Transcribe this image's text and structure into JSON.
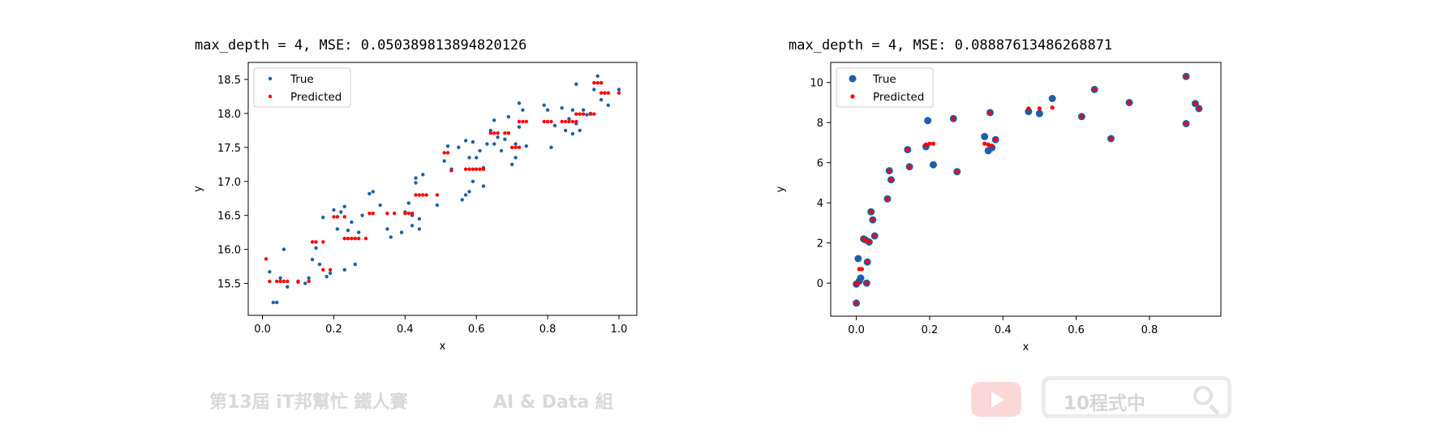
{
  "chart_data": [
    {
      "type": "scatter",
      "title": "max_depth = 4,  MSE:  0.050389813894820126",
      "xlabel": "x",
      "ylabel": "y",
      "xlim": [
        -0.04,
        1.05
      ],
      "ylim": [
        15.03,
        18.75
      ],
      "xticks": [
        "0.0",
        "0.2",
        "0.4",
        "0.6",
        "0.8",
        "1.0"
      ],
      "yticks": [
        "15.5",
        "16.0",
        "16.5",
        "17.0",
        "17.5",
        "18.0",
        "18.5"
      ],
      "grid": false,
      "legend_position": "upper-left",
      "series": [
        {
          "name": "True",
          "color": "#1f5fa8",
          "marker_size": 2.2,
          "points": [
            [
              0.02,
              15.67
            ],
            [
              0.03,
              15.22
            ],
            [
              0.04,
              15.22
            ],
            [
              0.05,
              15.58
            ],
            [
              0.06,
              16.0
            ],
            [
              0.07,
              15.45
            ],
            [
              0.1,
              15.52
            ],
            [
              0.12,
              15.5
            ],
            [
              0.13,
              15.58
            ],
            [
              0.14,
              15.85
            ],
            [
              0.15,
              16.02
            ],
            [
              0.16,
              15.78
            ],
            [
              0.17,
              16.47
            ],
            [
              0.18,
              15.6
            ],
            [
              0.19,
              15.65
            ],
            [
              0.2,
              16.58
            ],
            [
              0.21,
              16.3
            ],
            [
              0.22,
              16.55
            ],
            [
              0.23,
              16.63
            ],
            [
              0.23,
              15.7
            ],
            [
              0.24,
              16.28
            ],
            [
              0.25,
              16.4
            ],
            [
              0.26,
              15.78
            ],
            [
              0.27,
              16.25
            ],
            [
              0.28,
              16.5
            ],
            [
              0.3,
              16.82
            ],
            [
              0.31,
              16.85
            ],
            [
              0.33,
              16.65
            ],
            [
              0.35,
              16.3
            ],
            [
              0.36,
              16.18
            ],
            [
              0.39,
              16.25
            ],
            [
              0.4,
              16.55
            ],
            [
              0.41,
              16.68
            ],
            [
              0.42,
              16.5
            ],
            [
              0.42,
              16.35
            ],
            [
              0.43,
              16.98
            ],
            [
              0.43,
              17.05
            ],
            [
              0.44,
              16.3
            ],
            [
              0.44,
              16.45
            ],
            [
              0.45,
              17.1
            ],
            [
              0.49,
              16.65
            ],
            [
              0.51,
              17.3
            ],
            [
              0.52,
              17.52
            ],
            [
              0.53,
              17.18
            ],
            [
              0.55,
              17.5
            ],
            [
              0.56,
              16.73
            ],
            [
              0.57,
              16.8
            ],
            [
              0.57,
              17.6
            ],
            [
              0.58,
              16.85
            ],
            [
              0.58,
              17.35
            ],
            [
              0.59,
              17.58
            ],
            [
              0.59,
              17.0
            ],
            [
              0.6,
              17.35
            ],
            [
              0.61,
              17.45
            ],
            [
              0.62,
              16.93
            ],
            [
              0.62,
              17.2
            ],
            [
              0.63,
              17.55
            ],
            [
              0.64,
              17.75
            ],
            [
              0.65,
              17.9
            ],
            [
              0.65,
              17.55
            ],
            [
              0.66,
              17.65
            ],
            [
              0.67,
              17.45
            ],
            [
              0.68,
              17.62
            ],
            [
              0.69,
              17.95
            ],
            [
              0.7,
              17.25
            ],
            [
              0.71,
              17.35
            ],
            [
              0.71,
              17.55
            ],
            [
              0.72,
              18.15
            ],
            [
              0.72,
              17.8
            ],
            [
              0.73,
              18.05
            ],
            [
              0.74,
              17.52
            ],
            [
              0.79,
              18.12
            ],
            [
              0.8,
              18.05
            ],
            [
              0.81,
              17.5
            ],
            [
              0.82,
              17.82
            ],
            [
              0.84,
              18.08
            ],
            [
              0.85,
              17.75
            ],
            [
              0.86,
              17.92
            ],
            [
              0.87,
              17.7
            ],
            [
              0.87,
              18.05
            ],
            [
              0.88,
              18.43
            ],
            [
              0.88,
              17.85
            ],
            [
              0.89,
              17.75
            ],
            [
              0.9,
              18.05
            ],
            [
              0.91,
              17.98
            ],
            [
              0.92,
              18.0
            ],
            [
              0.93,
              18.35
            ],
            [
              0.94,
              18.55
            ],
            [
              0.95,
              18.2
            ],
            [
              0.95,
              18.45
            ],
            [
              0.96,
              18.3
            ],
            [
              0.97,
              18.12
            ],
            [
              1.0,
              18.35
            ]
          ]
        },
        {
          "name": "Predicted",
          "color": "#ff0000",
          "marker_size": 2.2,
          "points": [
            [
              0.01,
              15.86
            ],
            [
              0.02,
              15.53
            ],
            [
              0.04,
              15.53
            ],
            [
              0.05,
              15.53
            ],
            [
              0.06,
              15.53
            ],
            [
              0.07,
              15.53
            ],
            [
              0.1,
              15.53
            ],
            [
              0.13,
              15.53
            ],
            [
              0.14,
              16.11
            ],
            [
              0.15,
              16.11
            ],
            [
              0.17,
              16.11
            ],
            [
              0.17,
              15.7
            ],
            [
              0.19,
              15.7
            ],
            [
              0.2,
              16.48
            ],
            [
              0.21,
              16.48
            ],
            [
              0.23,
              16.48
            ],
            [
              0.23,
              16.16
            ],
            [
              0.24,
              16.16
            ],
            [
              0.25,
              16.16
            ],
            [
              0.26,
              16.16
            ],
            [
              0.27,
              16.16
            ],
            [
              0.29,
              16.16
            ],
            [
              0.3,
              16.53
            ],
            [
              0.31,
              16.53
            ],
            [
              0.35,
              16.53
            ],
            [
              0.37,
              16.53
            ],
            [
              0.4,
              16.53
            ],
            [
              0.41,
              16.53
            ],
            [
              0.42,
              16.53
            ],
            [
              0.43,
              16.8
            ],
            [
              0.44,
              16.8
            ],
            [
              0.45,
              16.8
            ],
            [
              0.46,
              16.8
            ],
            [
              0.49,
              16.8
            ],
            [
              0.51,
              17.42
            ],
            [
              0.52,
              17.42
            ],
            [
              0.53,
              17.16
            ],
            [
              0.57,
              17.18
            ],
            [
              0.58,
              17.18
            ],
            [
              0.59,
              17.18
            ],
            [
              0.6,
              17.18
            ],
            [
              0.61,
              17.18
            ],
            [
              0.62,
              17.18
            ],
            [
              0.64,
              17.71
            ],
            [
              0.65,
              17.71
            ],
            [
              0.66,
              17.71
            ],
            [
              0.68,
              17.71
            ],
            [
              0.69,
              17.71
            ],
            [
              0.7,
              17.5
            ],
            [
              0.71,
              17.5
            ],
            [
              0.72,
              17.5
            ],
            [
              0.72,
              17.88
            ],
            [
              0.73,
              17.88
            ],
            [
              0.74,
              17.88
            ],
            [
              0.79,
              17.88
            ],
            [
              0.8,
              17.88
            ],
            [
              0.81,
              17.88
            ],
            [
              0.84,
              17.88
            ],
            [
              0.85,
              17.88
            ],
            [
              0.86,
              17.88
            ],
            [
              0.87,
              17.88
            ],
            [
              0.88,
              17.88
            ],
            [
              0.88,
              17.99
            ],
            [
              0.89,
              17.99
            ],
            [
              0.9,
              17.99
            ],
            [
              0.92,
              17.99
            ],
            [
              0.93,
              17.99
            ],
            [
              0.93,
              18.45
            ],
            [
              0.94,
              18.45
            ],
            [
              0.95,
              18.45
            ],
            [
              0.95,
              18.3
            ],
            [
              0.96,
              18.3
            ],
            [
              0.97,
              18.3
            ],
            [
              1.0,
              18.3
            ]
          ]
        }
      ]
    },
    {
      "type": "scatter",
      "title": "max_depth = 4,  MSE:  0.08887613486268871",
      "xlabel": "x",
      "ylabel": "y",
      "xlim": [
        -0.07,
        0.995
      ],
      "ylim": [
        -1.65,
        11.0
      ],
      "xticks": [
        "0.0",
        "0.2",
        "0.4",
        "0.6",
        "0.8"
      ],
      "yticks": [
        "0",
        "2",
        "4",
        "6",
        "8",
        "10"
      ],
      "grid": false,
      "legend_position": "upper-left",
      "series": [
        {
          "name": "True",
          "color": "#1f5fa8",
          "marker_size": 4.5,
          "points": [
            [
              0.0,
              -1.0
            ],
            [
              0.0,
              -0.05
            ],
            [
              0.005,
              1.22
            ],
            [
              0.008,
              0.1
            ],
            [
              0.012,
              0.25
            ],
            [
              0.02,
              2.2
            ],
            [
              0.025,
              2.15
            ],
            [
              0.028,
              0.0
            ],
            [
              0.03,
              1.05
            ],
            [
              0.035,
              2.05
            ],
            [
              0.04,
              3.55
            ],
            [
              0.045,
              3.15
            ],
            [
              0.05,
              2.35
            ],
            [
              0.085,
              4.2
            ],
            [
              0.09,
              5.6
            ],
            [
              0.095,
              5.15
            ],
            [
              0.14,
              6.65
            ],
            [
              0.145,
              5.8
            ],
            [
              0.19,
              6.8
            ],
            [
              0.195,
              8.1
            ],
            [
              0.21,
              5.9
            ],
            [
              0.265,
              8.2
            ],
            [
              0.275,
              5.55
            ],
            [
              0.35,
              7.3
            ],
            [
              0.36,
              6.6
            ],
            [
              0.365,
              8.5
            ],
            [
              0.37,
              6.75
            ],
            [
              0.38,
              7.15
            ],
            [
              0.47,
              8.55
            ],
            [
              0.5,
              8.45
            ],
            [
              0.535,
              9.2
            ],
            [
              0.615,
              8.3
            ],
            [
              0.65,
              9.65
            ],
            [
              0.695,
              7.2
            ],
            [
              0.745,
              9.0
            ],
            [
              0.9,
              10.3
            ],
            [
              0.9,
              7.95
            ],
            [
              0.925,
              8.95
            ],
            [
              0.935,
              8.7
            ]
          ]
        },
        {
          "name": "Predicted",
          "color": "#ff0000",
          "marker_size": 2.6,
          "points": [
            [
              0.0,
              -1.0
            ],
            [
              0.0,
              -0.05
            ],
            [
              0.005,
              0.0
            ],
            [
              0.008,
              0.7
            ],
            [
              0.015,
              0.7
            ],
            [
              0.02,
              2.2
            ],
            [
              0.025,
              2.15
            ],
            [
              0.028,
              0.0
            ],
            [
              0.03,
              1.05
            ],
            [
              0.035,
              2.05
            ],
            [
              0.04,
              3.55
            ],
            [
              0.045,
              3.15
            ],
            [
              0.05,
              2.35
            ],
            [
              0.085,
              4.2
            ],
            [
              0.09,
              5.6
            ],
            [
              0.095,
              5.15
            ],
            [
              0.14,
              6.65
            ],
            [
              0.145,
              5.8
            ],
            [
              0.19,
              6.9
            ],
            [
              0.2,
              6.95
            ],
            [
              0.21,
              6.95
            ],
            [
              0.265,
              8.2
            ],
            [
              0.275,
              5.55
            ],
            [
              0.35,
              6.95
            ],
            [
              0.36,
              6.9
            ],
            [
              0.365,
              8.5
            ],
            [
              0.37,
              6.85
            ],
            [
              0.38,
              7.15
            ],
            [
              0.47,
              8.7
            ],
            [
              0.5,
              8.7
            ],
            [
              0.535,
              8.75
            ],
            [
              0.615,
              8.3
            ],
            [
              0.65,
              9.65
            ],
            [
              0.695,
              7.2
            ],
            [
              0.745,
              9.0
            ],
            [
              0.9,
              10.3
            ],
            [
              0.9,
              7.95
            ],
            [
              0.925,
              8.95
            ],
            [
              0.935,
              8.7
            ]
          ]
        }
      ]
    }
  ],
  "watermark": {
    "left_text": "第13屆 iT邦幫忙 鐵人賽",
    "middle_text": "AI & Data 組",
    "search_text": "10程式中",
    "youtube_icon": "youtube-play-icon",
    "search_icon": "magnifier-icon",
    "youtube_color": "#fbd7d7"
  }
}
